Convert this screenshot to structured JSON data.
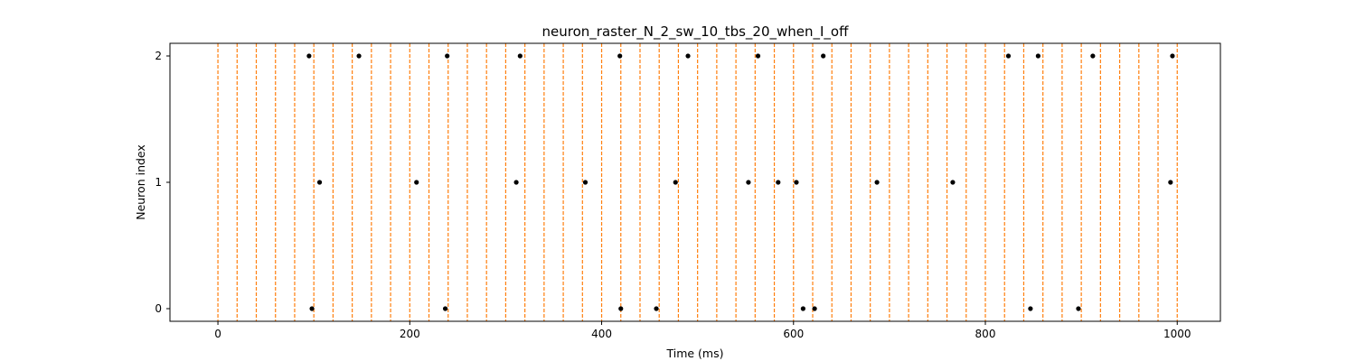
{
  "chart_data": {
    "type": "scatter",
    "title": "neuron_raster_N_2_sw_10_tbs_20_when_I_off",
    "xlabel": "Time (ms)",
    "ylabel": "Neuron index",
    "xlim": [
      -50,
      1045
    ],
    "ylim": [
      -0.1,
      2.1
    ],
    "xticks": [
      0,
      200,
      400,
      600,
      800,
      1000
    ],
    "yticks": [
      0,
      1,
      2
    ],
    "grid": false,
    "legend": "none",
    "marker_color": "#000000",
    "vline_color": "#ff7f0e",
    "vlines": [
      0,
      20,
      40,
      60,
      80,
      100,
      120,
      140,
      160,
      180,
      200,
      220,
      240,
      260,
      280,
      300,
      320,
      340,
      360,
      380,
      400,
      420,
      440,
      460,
      480,
      500,
      520,
      540,
      560,
      580,
      600,
      620,
      640,
      660,
      680,
      700,
      720,
      740,
      760,
      780,
      800,
      820,
      840,
      860,
      880,
      900,
      920,
      940,
      960,
      980,
      1000
    ],
    "spikes": [
      {
        "neuron": 0,
        "times": [
          98,
          237,
          420,
          457,
          610,
          622,
          847,
          897
        ]
      },
      {
        "neuron": 1,
        "times": [
          106,
          207,
          311,
          383,
          477,
          553,
          584,
          603,
          687,
          766,
          993
        ]
      },
      {
        "neuron": 2,
        "times": [
          95,
          147,
          239,
          315,
          419,
          490,
          563,
          631,
          824,
          855,
          912,
          995
        ]
      }
    ]
  }
}
